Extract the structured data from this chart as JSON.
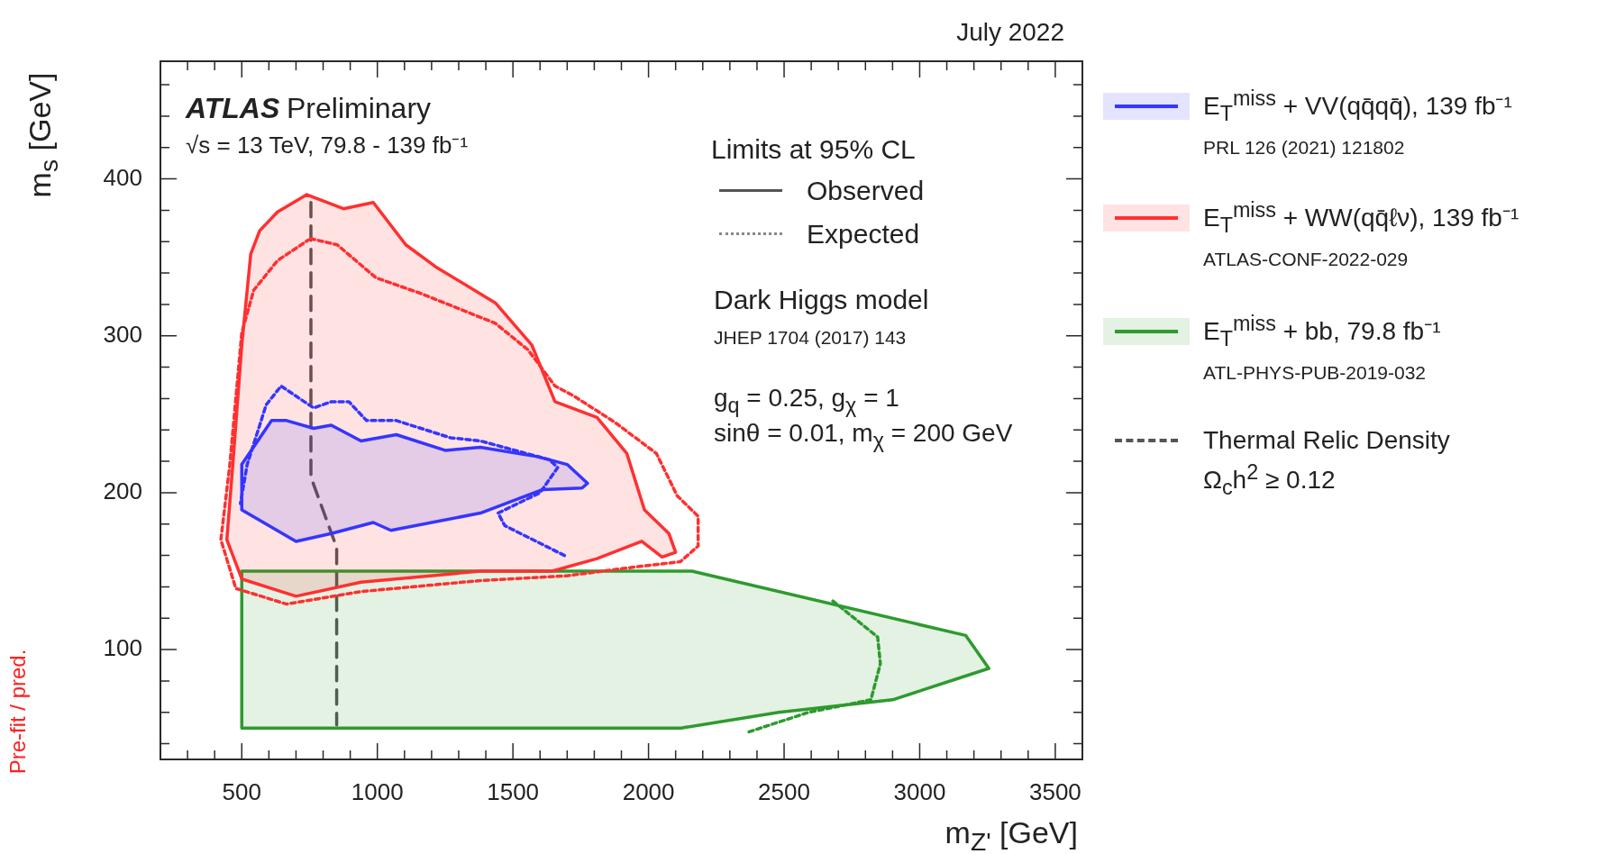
{
  "chart_data": {
    "type": "line",
    "title": "July 2022",
    "xlabel": "m$_{Z'}$ [GeV]",
    "ylabel": "m$_{s}$ [GeV]",
    "xlim": [
      200,
      3600
    ],
    "xticks": [
      {
        "value": 300,
        "label": null
      },
      {
        "value": 400,
        "label": null
      },
      500,
      {
        "value": 600,
        "label": null
      },
      {
        "value": 700,
        "label": null
      },
      {
        "value": 800,
        "label": null
      },
      {
        "value": 900,
        "label": null
      },
      1000,
      {
        "value": 1100,
        "label": null
      },
      {
        "value": 1200,
        "label": null
      },
      {
        "value": 1300,
        "label": null
      },
      {
        "value": 1400,
        "label": null
      },
      1500,
      {
        "value": 1600,
        "label": null
      },
      {
        "value": 1700,
        "label": null
      },
      {
        "value": 1800,
        "label": null
      },
      {
        "value": 1900,
        "label": null
      },
      2000,
      {
        "value": 2100,
        "label": null
      },
      {
        "value": 2200,
        "label": null
      },
      {
        "value": 2300,
        "label": null
      },
      {
        "value": 2400,
        "label": null
      },
      2500,
      {
        "value": 2600,
        "label": null
      },
      {
        "value": 2700,
        "label": null
      },
      {
        "value": 2800,
        "label": null
      },
      {
        "value": 2900,
        "label": null
      },
      3000,
      {
        "value": 3100,
        "label": null
      },
      {
        "value": 3200,
        "label": null
      },
      {
        "value": 3300,
        "label": null
      },
      {
        "value": 3400,
        "label": null
      },
      3500
    ],
    "ylim": [
      30,
      475
    ],
    "yticks": [
      {
        "value": 40,
        "label": null
      },
      {
        "value": 60,
        "label": null
      },
      {
        "value": 80,
        "label": null
      },
      100,
      {
        "value": 120,
        "label": null
      },
      {
        "value": 140,
        "label": null
      },
      {
        "value": 160,
        "label": null
      },
      {
        "value": 180,
        "label": null
      },
      200,
      {
        "value": 220,
        "label": null
      },
      {
        "value": 240,
        "label": null
      },
      {
        "value": 260,
        "label": null
      },
      {
        "value": 280,
        "label": null
      },
      300,
      {
        "value": 320,
        "label": null
      },
      {
        "value": 340,
        "label": null
      },
      {
        "value": 360,
        "label": null
      },
      {
        "value": 380,
        "label": null
      },
      400,
      {
        "value": 420,
        "label": null
      },
      {
        "value": 440,
        "label": null
      },
      {
        "value": 460,
        "label": null
      }
    ],
    "legend": "right",
    "marker": "none",
    "series": [
      {
        "name": "E$_{T}$$^{miss}$ + VV(qq̄qq̄), 139 fb⁻¹",
        "type": "area",
        "line_style": "solid",
        "color": "#3535ff",
        "x": [
          500,
          610,
          665,
          765,
          830,
          940,
          1070,
          1250,
          1380,
          1590,
          1700,
          1775,
          1755,
          1610,
          1380,
          1050,
          985,
          830,
          700,
          500,
          500
        ],
        "values": [
          218,
          246,
          246,
          241,
          243,
          233,
          237,
          227,
          229,
          223,
          218,
          206,
          203,
          202,
          187,
          176,
          181,
          174,
          169,
          189,
          218
        ]
      },
      {
        "type": "line",
        "line_style": "dotted",
        "color": "#3535ff",
        "x": [
          1690,
          1470,
          1445,
          1600,
          1665,
          1635,
          1380,
          1270,
          1070,
          960,
          895,
          830,
          765,
          645,
          590,
          520,
          495
        ],
        "values": [
          160,
          179,
          187,
          200,
          216,
          221,
          233,
          235,
          246,
          246,
          258,
          258,
          254,
          268,
          256,
          218,
          193
        ]
      },
      {
        "name": "E$_{T}$$^{miss}$ + WW(qq̄ℓν), 139 fb⁻¹",
        "type": "area",
        "line_style": "solid",
        "color": "#ff3030",
        "x": [
          740,
          875,
          985,
          1105,
          1215,
          1435,
          1570,
          1655,
          1810,
          1920,
          1985,
          2075,
          2100,
          2050,
          1975,
          1810,
          1645,
          1380,
          940,
          700,
          500,
          445,
          467,
          500,
          533,
          566,
          632,
          740
        ],
        "values": [
          390,
          381,
          385,
          358,
          344,
          321,
          294,
          258,
          248,
          225,
          189,
          174,
          162,
          159,
          169,
          158,
          150,
          150,
          143,
          134,
          145,
          170,
          218,
          294,
          352,
          367,
          379,
          390
        ]
      },
      {
        "type": "line",
        "line_style": "dotted",
        "color": "#ff3030",
        "x": [
          753,
          852,
          995,
          1160,
          1435,
          1556,
          1655,
          1721,
          1875,
          2029,
          2106,
          2183,
          2183,
          2117,
          1919,
          1698,
          1380,
          940,
          665,
          478,
          423,
          456,
          500,
          544,
          632,
          745
        ],
        "values": [
          362,
          358,
          337,
          327,
          308,
          291,
          268,
          262,
          245,
          225,
          198,
          185,
          166,
          156,
          152,
          147,
          144,
          137,
          129,
          139,
          170,
          218,
          302,
          329,
          348,
          361
        ]
      },
      {
        "name": "E$_{T}$$^{miss}$ + bb, 79.8 fb⁻¹",
        "type": "area",
        "line_style": "solid",
        "color": "#2e9a2e",
        "x": [
          500,
          2160,
          3170,
          3255,
          2900,
          2480,
          2120,
          500,
          500
        ],
        "values": [
          150,
          150,
          109,
          88,
          68,
          60,
          50,
          50,
          150
        ]
      },
      {
        "type": "line",
        "line_style": "dotted",
        "color": "#2e9a2e",
        "x": [
          2680,
          2845,
          2855,
          2820,
          2590,
          2360
        ],
        "values": [
          131,
          108,
          91,
          68,
          60,
          47
        ]
      },
      {
        "name": "Thermal Relic Density",
        "type": "line",
        "line_style": "dashed",
        "color": "#555555",
        "x": [
          755,
          755,
          850,
          850
        ],
        "values": [
          385,
          210,
          165,
          52
        ]
      }
    ],
    "annotations": [
      "ATLAS",
      "Preliminary",
      "√s = 13 TeV, 79.8 - 139 fb⁻¹",
      "Limits at 95% CL",
      "Observed",
      "Expected",
      "Dark Higgs model",
      "JHEP 1704 (2017) 143",
      "g$_{q}$ = 0.25, g$_{χ}$ = 1",
      "sinθ = 0.01, m$_{χ}$ = 200 GeV",
      "PRL 126 (2021) 121802",
      "ATLAS-CONF-2022-029",
      "ATL-PHYS-PUB-2019-032",
      "Ω$_{c}$h$^{2}$ ≥ 0.12",
      "Pre-fit / pred."
    ]
  }
}
